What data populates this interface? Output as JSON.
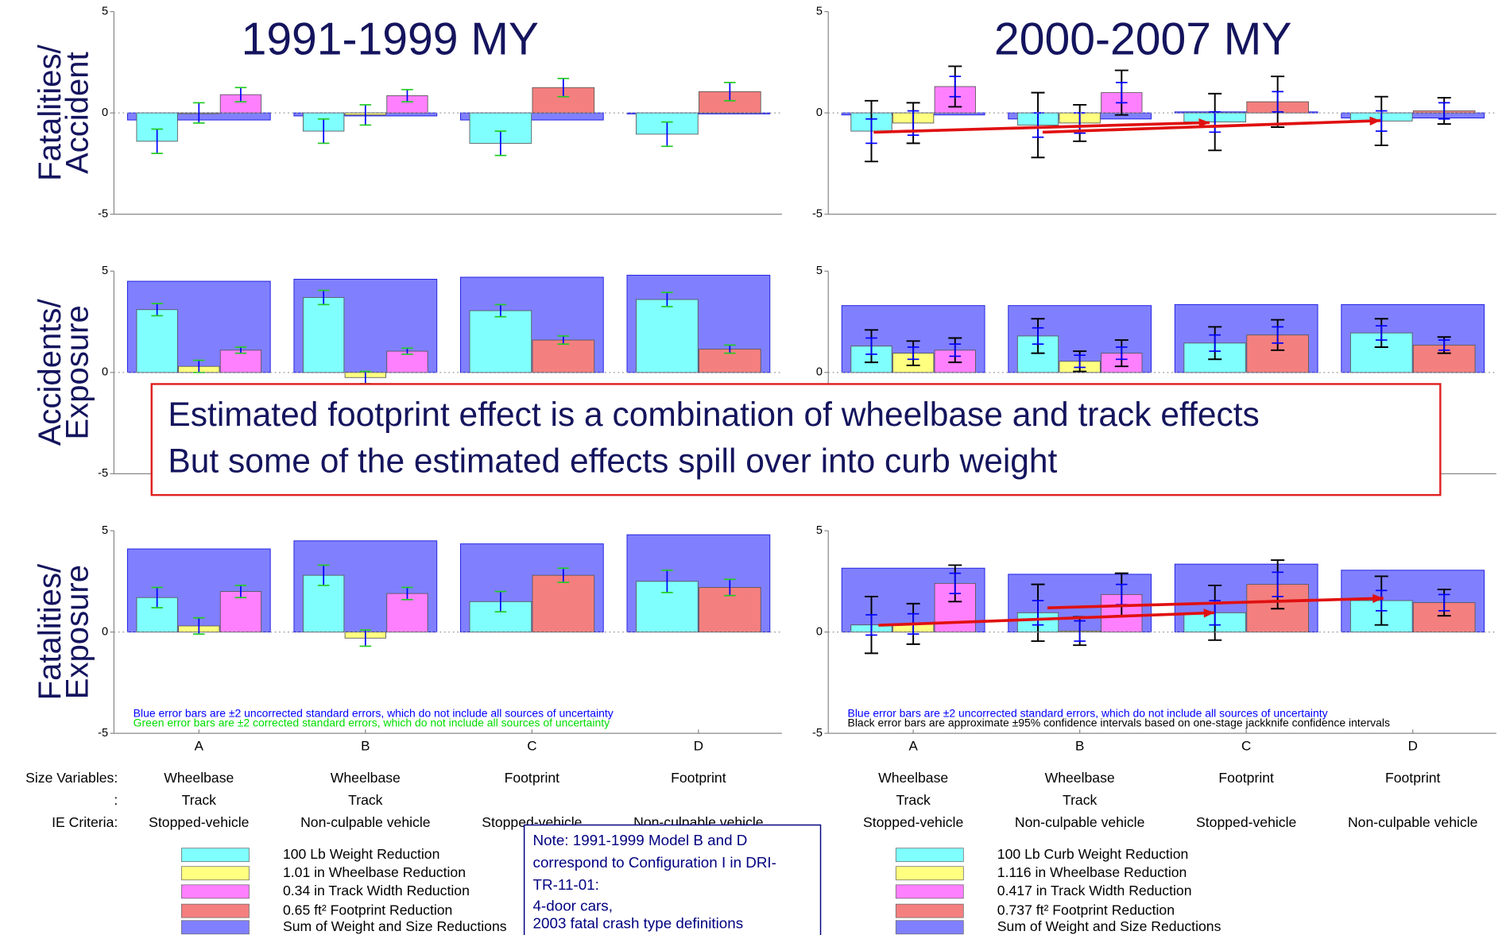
{
  "chart_data": [
    {
      "type": "bar",
      "title": "1991-1999 MY",
      "ylabel": [
        "Fatalities/",
        "Accident"
      ],
      "categories": [
        null,
        null,
        null,
        null
      ],
      "ylim": [
        -5,
        5
      ],
      "yticks": [
        -5,
        0,
        5
      ],
      "grid": true,
      "series": [
        {
          "color": "#80ffff",
          "values": [
            -1.4,
            -0.9,
            -1.5,
            -1.05
          ],
          "errors": [
            0.6,
            0.6,
            0.6,
            0.6
          ]
        },
        {
          "color": "#ffff80",
          "values": [
            0.0,
            -0.1,
            null,
            null
          ],
          "errors": [
            0.5,
            0.5,
            null,
            null
          ]
        },
        {
          "color": "#ff80ff",
          "values": [
            0.9,
            0.85,
            null,
            null
          ],
          "errors": [
            0.35,
            0.3,
            null,
            null
          ]
        },
        {
          "color": "#f47f7f",
          "values": [
            null,
            null,
            1.25,
            1.05
          ],
          "errors": [
            null,
            null,
            0.45,
            0.45
          ]
        },
        {
          "color": "#8080ff",
          "values": [
            -0.35,
            -0.15,
            -0.35,
            -0.05
          ]
        }
      ]
    },
    {
      "type": "bar",
      "title": "2000-2007 MY",
      "categories": [
        null,
        null,
        null,
        null
      ],
      "ylim": [
        -5,
        5
      ],
      "yticks": [
        -5,
        0,
        5
      ],
      "grid": true,
      "series": [
        {
          "color": "#80ffff",
          "values": [
            -0.9,
            -0.6,
            -0.45,
            -0.4
          ],
          "errors": [
            0.6,
            0.6,
            0.5,
            0.5
          ],
          "ci_errors": [
            1.5,
            1.6,
            1.4,
            1.2
          ]
        },
        {
          "color": "#ffff80",
          "values": [
            -0.5,
            -0.5,
            null,
            null
          ],
          "errors": [
            0.6,
            0.5,
            null,
            null
          ],
          "ci_errors": [
            1.0,
            0.9,
            null,
            null
          ]
        },
        {
          "color": "#ff80ff",
          "values": [
            1.3,
            1.0,
            null,
            null
          ],
          "errors": [
            0.5,
            0.5,
            null,
            null
          ],
          "ci_errors": [
            1.0,
            1.1,
            null,
            null
          ]
        },
        {
          "color": "#f47f7f",
          "values": [
            null,
            null,
            0.55,
            0.1
          ],
          "errors": [
            null,
            null,
            0.5,
            0.4
          ],
          "ci_errors": [
            null,
            null,
            1.25,
            0.65
          ]
        },
        {
          "color": "#8080ff",
          "values": [
            -0.1,
            -0.3,
            0.05,
            -0.25
          ]
        }
      ]
    },
    {
      "type": "bar",
      "ylabel": [
        "Accidents/",
        "Exposure"
      ],
      "categories": [
        null,
        null,
        null,
        null
      ],
      "ylim": [
        -5,
        5
      ],
      "yticks": [
        -5,
        0,
        5
      ],
      "grid": true,
      "series": [
        {
          "color": "#80ffff",
          "values": [
            3.1,
            3.7,
            3.05,
            3.6
          ],
          "errors": [
            0.3,
            0.35,
            0.3,
            0.35
          ]
        },
        {
          "color": "#ffff80",
          "values": [
            0.3,
            -0.25,
            null,
            null
          ],
          "errors": [
            0.3,
            0.3,
            null,
            null
          ]
        },
        {
          "color": "#ff80ff",
          "values": [
            1.1,
            1.05,
            null,
            null
          ],
          "errors": [
            0.15,
            0.15,
            null,
            null
          ]
        },
        {
          "color": "#f47f7f",
          "values": [
            null,
            null,
            1.6,
            1.15
          ],
          "errors": [
            null,
            null,
            0.2,
            0.2
          ]
        },
        {
          "color": "#8080ff",
          "values": [
            4.5,
            4.6,
            4.7,
            4.8
          ]
        }
      ]
    },
    {
      "type": "bar",
      "categories": [
        null,
        null,
        null,
        null
      ],
      "ylim": [
        -5,
        5
      ],
      "yticks": [
        -5,
        0,
        5
      ],
      "grid": true,
      "series": [
        {
          "color": "#80ffff",
          "values": [
            1.3,
            1.8,
            1.45,
            1.95
          ],
          "errors": [
            0.4,
            0.4,
            0.4,
            0.35
          ],
          "ci_errors": [
            0.8,
            0.85,
            0.8,
            0.7
          ]
        },
        {
          "color": "#ffff80",
          "values": [
            0.95,
            0.55,
            null,
            null
          ],
          "errors": [
            0.3,
            0.3,
            null,
            null
          ],
          "ci_errors": [
            0.6,
            0.5,
            null,
            null
          ]
        },
        {
          "color": "#ff80ff",
          "values": [
            1.1,
            0.95,
            null,
            null
          ],
          "errors": [
            0.3,
            0.3,
            null,
            null
          ],
          "ci_errors": [
            0.6,
            0.65,
            null,
            null
          ]
        },
        {
          "color": "#f47f7f",
          "values": [
            null,
            null,
            1.85,
            1.35
          ],
          "errors": [
            null,
            null,
            0.4,
            0.25
          ],
          "ci_errors": [
            null,
            null,
            0.75,
            0.4
          ]
        },
        {
          "color": "#8080ff",
          "values": [
            3.3,
            3.3,
            3.35,
            3.35
          ]
        }
      ]
    },
    {
      "type": "bar",
      "ylabel": [
        "Fatalities/",
        "Exposure"
      ],
      "categories": [
        "A",
        "B",
        "C",
        "D"
      ],
      "ylim": [
        -5,
        5
      ],
      "yticks": [
        -5,
        0,
        5
      ],
      "grid": true,
      "notes": [
        {
          "text": "Blue error bars are ±2 uncorrected standard errors, which do not include all sources of uncertainty",
          "color": "#0000ff"
        },
        {
          "text": "Green error bars are ±2 corrected standard errors, which do not include all sources of uncertainty",
          "color": "#00dd00"
        }
      ],
      "series": [
        {
          "name": "100 Lb Weight Reduction",
          "color": "#80ffff",
          "values": [
            1.7,
            2.8,
            1.5,
            2.5
          ],
          "errors": [
            0.5,
            0.5,
            0.5,
            0.55
          ]
        },
        {
          "name": "1.01 in Wheelbase Reduction",
          "color": "#ffff80",
          "values": [
            0.3,
            -0.3,
            null,
            null
          ],
          "errors": [
            0.4,
            0.4,
            null,
            null
          ]
        },
        {
          "name": "0.34 in Track Width Reduction",
          "color": "#ff80ff",
          "values": [
            2.0,
            1.9,
            null,
            null
          ],
          "errors": [
            0.3,
            0.3,
            null,
            null
          ]
        },
        {
          "name": "0.65 ft² Footprint Reduction",
          "color": "#f47f7f",
          "values": [
            null,
            null,
            2.8,
            2.2
          ],
          "errors": [
            null,
            null,
            0.35,
            0.4
          ]
        },
        {
          "name": "Sum of Weight and Size Reductions",
          "color": "#8080ff",
          "values": [
            4.1,
            4.5,
            4.35,
            4.8
          ]
        }
      ]
    },
    {
      "type": "bar",
      "categories": [
        "A",
        "B",
        "C",
        "D"
      ],
      "ylim": [
        -5,
        5
      ],
      "yticks": [
        -5,
        0,
        5
      ],
      "grid": true,
      "notes": [
        {
          "text": "Blue error bars are ±2 uncorrected standard errors, which do not include all sources of uncertainty",
          "color": "#0000ff"
        },
        {
          "text": "Black error bars are approximate ±95% confidence intervals based on one-stage jackknife confidence intervals",
          "color": "#000000"
        }
      ],
      "series": [
        {
          "name": "100 Lb Curb Weight Reduction",
          "color": "#80ffff",
          "values": [
            0.35,
            0.95,
            0.95,
            1.55
          ],
          "errors": [
            0.5,
            0.6,
            0.6,
            0.5
          ],
          "ci_errors": [
            1.4,
            1.4,
            1.35,
            1.2
          ]
        },
        {
          "name": "1.116 in Wheelbase Reduction",
          "color": "#ffff80",
          "values": [
            0.4,
            0.05,
            null,
            null
          ],
          "errors": [
            0.5,
            0.5,
            null,
            null
          ],
          "ci_errors": [
            1.0,
            0.7,
            null,
            null
          ]
        },
        {
          "name": "0.417 in Track Width Reduction",
          "color": "#ff80ff",
          "values": [
            2.4,
            1.85,
            null,
            null
          ],
          "errors": [
            0.5,
            0.5,
            null,
            null
          ],
          "ci_errors": [
            0.9,
            1.05,
            null,
            null
          ]
        },
        {
          "name": "0.737 ft² Footprint Reduction",
          "color": "#f47f7f",
          "values": [
            null,
            null,
            2.35,
            1.45
          ],
          "errors": [
            null,
            null,
            0.6,
            0.4
          ],
          "ci_errors": [
            null,
            null,
            1.2,
            0.65
          ]
        },
        {
          "name": "Sum of Weight and Size Reductions",
          "color": "#8080ff",
          "values": [
            3.15,
            2.85,
            3.35,
            3.05
          ]
        }
      ]
    }
  ],
  "size_table": {
    "row_labels": [
      "Size Variables:",
      ":",
      "IE Criteria:"
    ],
    "columns": [
      [
        "Wheelbase",
        "Track",
        "Stopped-vehicle"
      ],
      [
        "Wheelbase",
        "Track",
        "Non-culpable vehicle"
      ],
      [
        "Footprint",
        null,
        "Stopped-vehicle"
      ],
      [
        "Footprint",
        null,
        "Non-culpable vehicle"
      ],
      [
        "Wheelbase",
        "Track",
        "Stopped-vehicle"
      ],
      [
        "Wheelbase",
        "Track",
        "Non-culpable vehicle"
      ],
      [
        "Footprint",
        null,
        "Stopped-vehicle"
      ],
      [
        "Footprint",
        null,
        "Non-culpable vehicle"
      ]
    ]
  },
  "note": [
    "Note: 1991-1999 Model B and D",
    "correspond to Configuration I in DRI-",
    "TR-11-01:",
    "4-door cars,",
    "2003 fatal crash type definitions"
  ],
  "callout": [
    "Estimated footprint effect is a combination of wheelbase and track effects",
    "But some of the estimated effects spill over into curb weight"
  ]
}
